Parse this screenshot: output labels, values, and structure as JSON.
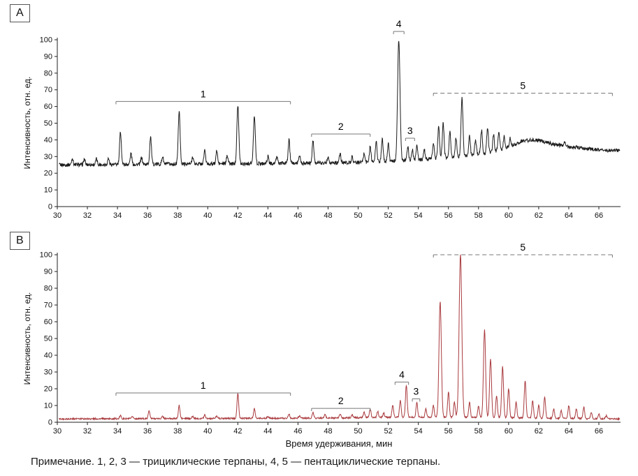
{
  "figure": {
    "caption": "Примечание. 1, 2, 3 — трициклические терпаны, 4, 5 — пентациклические терпаны."
  },
  "chart_data": [
    {
      "type": "line",
      "panel_letter": "A",
      "color": "#1c1c1c",
      "ylabel": "Интенсивность, отн. ед.",
      "xlabel": "",
      "xlim": [
        30,
        67.4
      ],
      "ylim": [
        0,
        100
      ],
      "xticks": [
        30,
        32,
        34,
        36,
        38,
        40,
        42,
        44,
        46,
        48,
        50,
        52,
        54,
        56,
        58,
        60,
        62,
        64,
        66
      ],
      "yticks": [
        0,
        10,
        20,
        30,
        40,
        50,
        60,
        70,
        80,
        90,
        100
      ],
      "grid": false,
      "noise_amplitude": 1.1,
      "baseline_points": [
        [
          30,
          25
        ],
        [
          46,
          26
        ],
        [
          50,
          26.5
        ],
        [
          52,
          27
        ],
        [
          54,
          28
        ],
        [
          55.5,
          29
        ],
        [
          57,
          30
        ],
        [
          58.5,
          32
        ],
        [
          59.5,
          34
        ],
        [
          60.3,
          37
        ],
        [
          61,
          39.5
        ],
        [
          61.7,
          40
        ],
        [
          62.3,
          39
        ],
        [
          63,
          37.5
        ],
        [
          64,
          36
        ],
        [
          65,
          35
        ],
        [
          66,
          34
        ],
        [
          67.4,
          33.5
        ]
      ],
      "peaks": [
        [
          31.0,
          29
        ],
        [
          31.8,
          28.5
        ],
        [
          32.6,
          28.5
        ],
        [
          33.4,
          29
        ],
        [
          34.2,
          45
        ],
        [
          34.9,
          32
        ],
        [
          35.6,
          29.5
        ],
        [
          36.2,
          42
        ],
        [
          37.0,
          30
        ],
        [
          38.1,
          57
        ],
        [
          39.0,
          30
        ],
        [
          39.8,
          34
        ],
        [
          40.6,
          33.5
        ],
        [
          41.3,
          31
        ],
        [
          42.0,
          61
        ],
        [
          43.1,
          55
        ],
        [
          44.0,
          30
        ],
        [
          44.6,
          30
        ],
        [
          45.4,
          40
        ],
        [
          46.1,
          31
        ],
        [
          47.0,
          40
        ],
        [
          48.0,
          30
        ],
        [
          48.8,
          31.5
        ],
        [
          49.6,
          30
        ],
        [
          50.4,
          32
        ],
        [
          50.8,
          36
        ],
        [
          51.2,
          39
        ],
        [
          51.6,
          41
        ],
        [
          52.0,
          38
        ],
        [
          52.7,
          100
        ],
        [
          53.3,
          36
        ],
        [
          53.6,
          34
        ],
        [
          53.9,
          37
        ],
        [
          54.4,
          34
        ],
        [
          55.0,
          38
        ],
        [
          55.35,
          48
        ],
        [
          55.65,
          50
        ],
        [
          56.1,
          45
        ],
        [
          56.5,
          41
        ],
        [
          56.9,
          65
        ],
        [
          57.4,
          42
        ],
        [
          57.8,
          40
        ],
        [
          58.2,
          46
        ],
        [
          58.6,
          47
        ],
        [
          59.0,
          43
        ],
        [
          59.35,
          45
        ],
        [
          59.7,
          42
        ],
        [
          60.1,
          41
        ],
        [
          63.7,
          39
        ]
      ],
      "annotations": [
        {
          "label": "1",
          "x1": 33.9,
          "x2": 45.5,
          "y": 63,
          "dashed": false
        },
        {
          "label": "2",
          "x1": 46.9,
          "x2": 50.8,
          "y": 43.5,
          "dashed": false
        },
        {
          "label": "4",
          "x1": 52.35,
          "x2": 53.05,
          "y": 105,
          "dashed": false
        },
        {
          "label": "3",
          "x1": 53.15,
          "x2": 53.75,
          "y": 41,
          "dashed": false
        },
        {
          "label": "5",
          "x1": 55.0,
          "x2": 66.9,
          "y": 68,
          "dashed": true
        }
      ]
    },
    {
      "type": "line",
      "panel_letter": "B",
      "color": "#a93a3e",
      "ylabel": "Интенсивность, отн. ед.",
      "xlabel": "Время удерживания, мин",
      "xlim": [
        30,
        67.4
      ],
      "ylim": [
        0,
        100
      ],
      "xticks": [
        30,
        32,
        34,
        36,
        38,
        40,
        42,
        44,
        46,
        48,
        50,
        52,
        54,
        56,
        58,
        60,
        62,
        64,
        66
      ],
      "yticks": [
        0,
        10,
        20,
        30,
        40,
        50,
        60,
        70,
        80,
        90,
        100
      ],
      "grid": false,
      "noise_amplitude": 0.45,
      "baseline_points": [
        [
          30,
          2
        ],
        [
          48,
          2.5
        ],
        [
          52,
          3
        ],
        [
          55,
          3
        ],
        [
          58,
          3
        ],
        [
          62,
          2.5
        ],
        [
          67.4,
          2
        ]
      ],
      "peaks": [
        [
          34.2,
          4
        ],
        [
          35.0,
          3.5
        ],
        [
          36.1,
          7
        ],
        [
          37.0,
          3.5
        ],
        [
          38.1,
          10
        ],
        [
          39.0,
          3.5
        ],
        [
          39.8,
          4.5
        ],
        [
          40.6,
          4
        ],
        [
          42.0,
          17
        ],
        [
          43.1,
          8
        ],
        [
          44.0,
          3.5
        ],
        [
          45.4,
          5
        ],
        [
          46.1,
          4
        ],
        [
          47.0,
          6
        ],
        [
          47.8,
          4.5
        ],
        [
          48.8,
          5
        ],
        [
          49.6,
          4.5
        ],
        [
          50.4,
          6
        ],
        [
          50.8,
          8
        ],
        [
          51.3,
          6.5
        ],
        [
          51.7,
          5.5
        ],
        [
          52.3,
          10
        ],
        [
          52.8,
          13
        ],
        [
          53.2,
          22
        ],
        [
          53.9,
          12
        ],
        [
          54.5,
          8
        ],
        [
          55.0,
          10
        ],
        [
          55.45,
          72
        ],
        [
          56.0,
          18
        ],
        [
          56.4,
          12
        ],
        [
          56.8,
          100
        ],
        [
          57.4,
          12
        ],
        [
          58.0,
          10
        ],
        [
          58.4,
          55
        ],
        [
          58.8,
          38
        ],
        [
          59.2,
          16
        ],
        [
          59.6,
          33
        ],
        [
          60.0,
          20
        ],
        [
          60.5,
          12
        ],
        [
          61.1,
          25
        ],
        [
          61.6,
          13
        ],
        [
          62.0,
          10
        ],
        [
          62.4,
          15
        ],
        [
          63.0,
          8
        ],
        [
          63.5,
          7
        ],
        [
          64.0,
          10
        ],
        [
          64.5,
          8
        ],
        [
          65.0,
          9
        ],
        [
          65.5,
          6
        ],
        [
          66.0,
          5
        ],
        [
          66.5,
          4
        ]
      ],
      "annotations": [
        {
          "label": "1",
          "x1": 33.9,
          "x2": 45.5,
          "y": 17.5,
          "dashed": false
        },
        {
          "label": "2",
          "x1": 46.9,
          "x2": 50.8,
          "y": 8.3,
          "dashed": false
        },
        {
          "label": "4",
          "x1": 52.45,
          "x2": 53.35,
          "y": 24,
          "dashed": false
        },
        {
          "label": "3",
          "x1": 53.6,
          "x2": 54.1,
          "y": 14,
          "dashed": false
        },
        {
          "label": "5",
          "x1": 55.0,
          "x2": 66.9,
          "y": 100,
          "dashed": true
        }
      ]
    }
  ]
}
